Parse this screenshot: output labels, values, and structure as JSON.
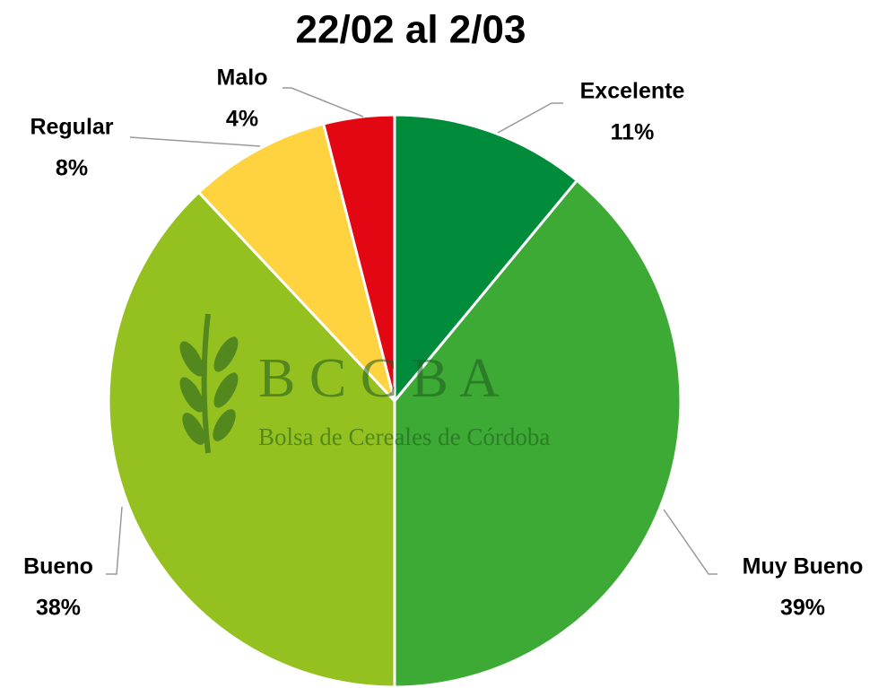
{
  "chart_data": {
    "type": "pie",
    "title": "22/02 al 2/03",
    "categories": [
      "Excelente",
      "Muy Bueno",
      "Bueno",
      "Regular",
      "Malo"
    ],
    "values": [
      11,
      39,
      38,
      8,
      4
    ],
    "value_labels": [
      "11%",
      "39%",
      "38%",
      "8%",
      "4%"
    ],
    "colors": [
      "#008c3a",
      "#3daa35",
      "#94c11f",
      "#ffd23f",
      "#e30613"
    ]
  },
  "watermark": {
    "logo": "B C C B A",
    "subtitle": "Bolsa de Cereales de Córdoba"
  }
}
